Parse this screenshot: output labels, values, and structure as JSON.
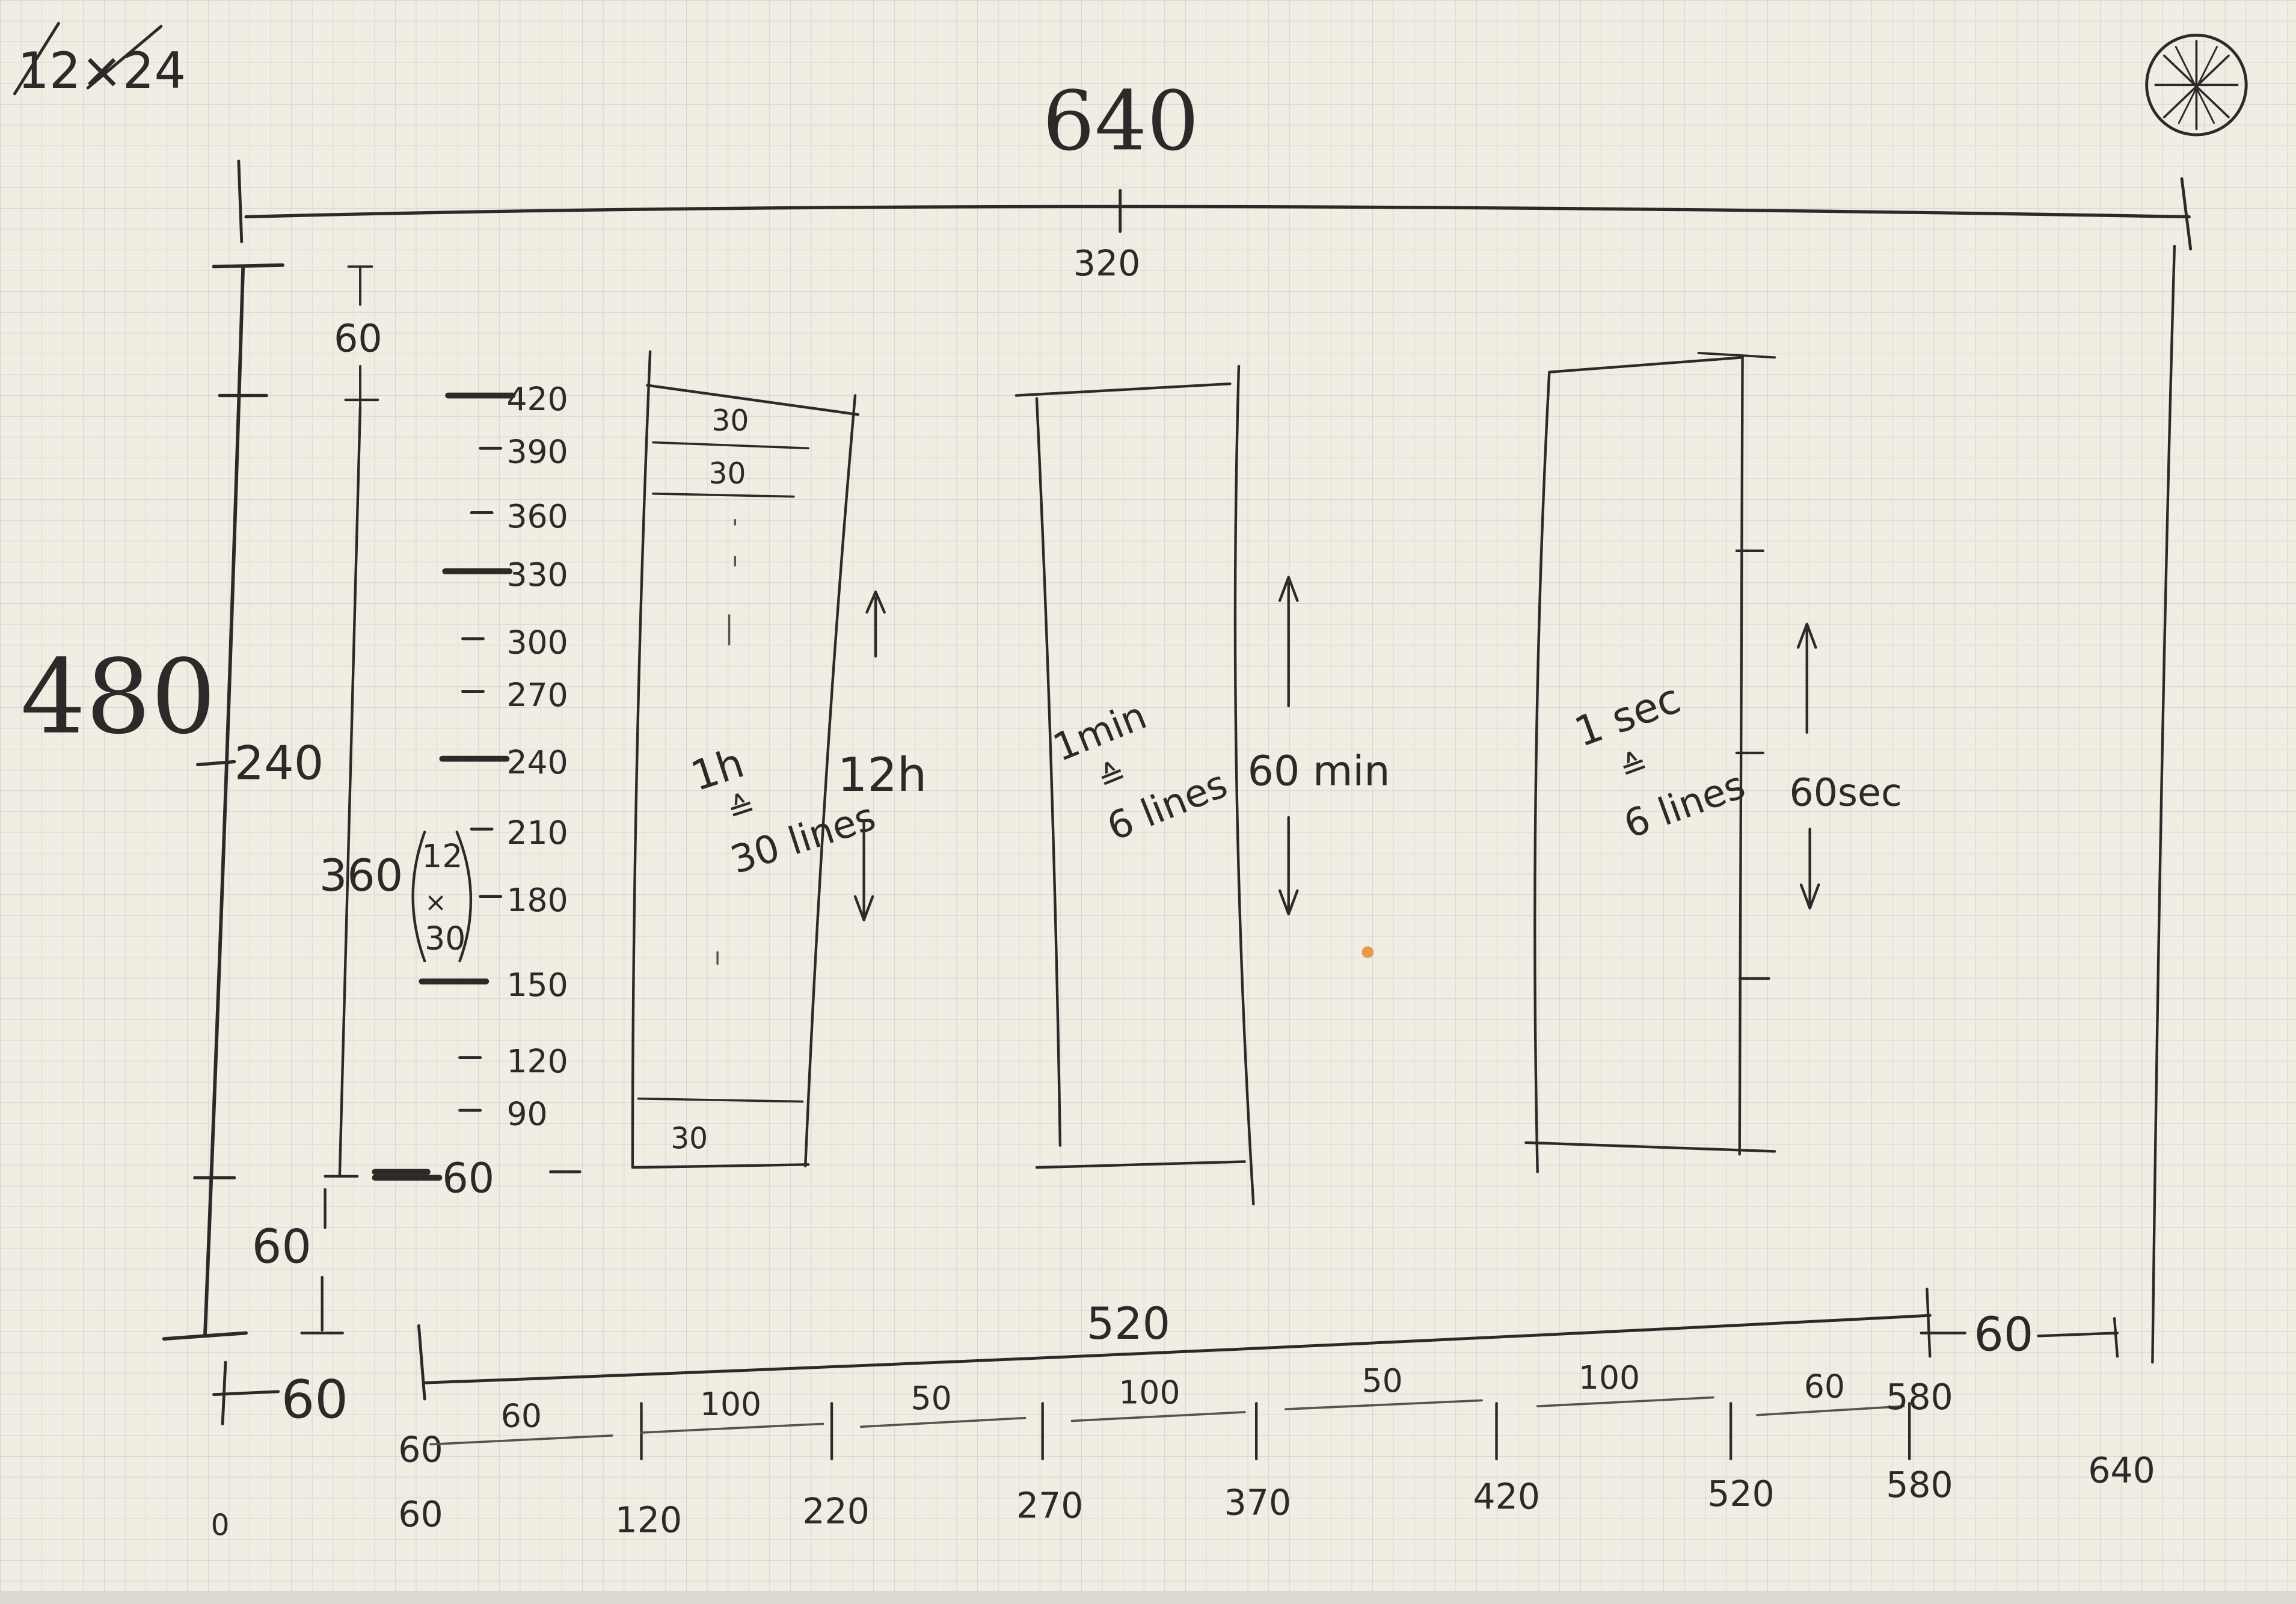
{
  "corner_label": "12×24",
  "top": {
    "width": "640",
    "center": "320"
  },
  "left": {
    "height": "480",
    "mid": "240",
    "bottom_margin": "60",
    "lower_margin": "60"
  },
  "hour_scale": {
    "top_margin": "60",
    "total": "360",
    "paren_top": "12",
    "paren_x": "×",
    "paren_bottom": "30",
    "ticks": [
      "420",
      "390",
      "360",
      "330",
      "300",
      "270",
      "240",
      "210",
      "180",
      "150",
      "120",
      "90",
      "60"
    ]
  },
  "hour_column": {
    "row1": "30",
    "row2": "30",
    "last_row": "30",
    "line1": "1h",
    "eq": "≙",
    "line2": "30 lines",
    "span": "12h"
  },
  "minute_column": {
    "line1": "1min",
    "eq": "≙",
    "line2": "6 lines",
    "span": "60 min"
  },
  "second_column": {
    "line1": "1 sec",
    "eq": "≙",
    "line2": "6 lines",
    "span": "60sec"
  },
  "bottom": {
    "span_total": "520",
    "right_margin": "60",
    "left_margin": "60",
    "segments": [
      "60",
      "100",
      "50",
      "100",
      "50",
      "100",
      "60"
    ],
    "segment_end": "580",
    "origin_label": "60",
    "axis_labels": [
      "0",
      "60",
      "120",
      "220",
      "270",
      "370",
      "420",
      "520",
      "580",
      "640"
    ]
  },
  "icons": [
    "wheel-icon"
  ]
}
